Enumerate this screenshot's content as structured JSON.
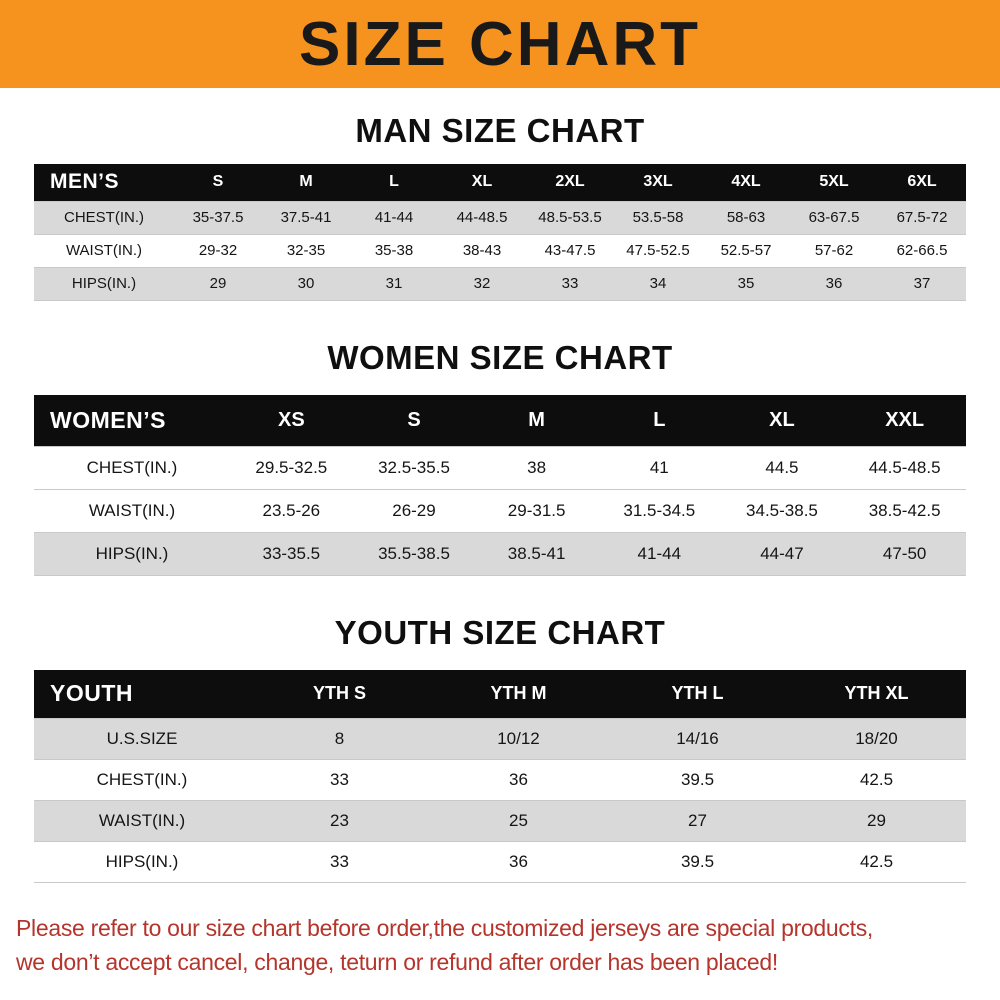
{
  "banner": {
    "title": "SIZE CHART"
  },
  "colors": {
    "banner_bg": "#f6921e",
    "header_row_bg": "#0d0d0d",
    "shaded_row_bg": "#d9d9d9",
    "footer_text": "#b5342b"
  },
  "chart_data": [
    {
      "type": "table",
      "title": "MAN SIZE CHART",
      "corner_label": "MEN’S",
      "columns": [
        "S",
        "M",
        "L",
        "XL",
        "2XL",
        "3XL",
        "4XL",
        "5XL",
        "6XL"
      ],
      "rows": [
        {
          "label": "CHEST(IN.)",
          "values": [
            "35-37.5",
            "37.5-41",
            "41-44",
            "44-48.5",
            "48.5-53.5",
            "53.5-58",
            "58-63",
            "63-67.5",
            "67.5-72"
          ]
        },
        {
          "label": "WAIST(IN.)",
          "values": [
            "29-32",
            "32-35",
            "35-38",
            "38-43",
            "43-47.5",
            "47.5-52.5",
            "52.5-57",
            "57-62",
            "62-66.5"
          ]
        },
        {
          "label": "HIPS(IN.)",
          "values": [
            "29",
            "30",
            "31",
            "32",
            "33",
            "34",
            "35",
            "36",
            "37"
          ]
        }
      ]
    },
    {
      "type": "table",
      "title": "WOMEN SIZE CHART",
      "corner_label": "WOMEN’S",
      "columns": [
        "XS",
        "S",
        "M",
        "L",
        "XL",
        "XXL"
      ],
      "rows": [
        {
          "label": "CHEST(IN.)",
          "values": [
            "29.5-32.5",
            "32.5-35.5",
            "38",
            "41",
            "44.5",
            "44.5-48.5"
          ]
        },
        {
          "label": "WAIST(IN.)",
          "values": [
            "23.5-26",
            "26-29",
            "29-31.5",
            "31.5-34.5",
            "34.5-38.5",
            "38.5-42.5"
          ]
        },
        {
          "label": "HIPS(IN.)",
          "values": [
            "33-35.5",
            "35.5-38.5",
            "38.5-41",
            "41-44",
            "44-47",
            "47-50"
          ]
        }
      ]
    },
    {
      "type": "table",
      "title": "YOUTH SIZE CHART",
      "corner_label": "YOUTH",
      "columns": [
        "YTH S",
        "YTH M",
        "YTH L",
        "YTH XL"
      ],
      "rows": [
        {
          "label": "U.S.SIZE",
          "values": [
            "8",
            "10/12",
            "14/16",
            "18/20"
          ]
        },
        {
          "label": "CHEST(IN.)",
          "values": [
            "33",
            "36",
            "39.5",
            "42.5"
          ]
        },
        {
          "label": "WAIST(IN.)",
          "values": [
            "23",
            "25",
            "27",
            "29"
          ]
        },
        {
          "label": "HIPS(IN.)",
          "values": [
            "33",
            "36",
            "39.5",
            "42.5"
          ]
        }
      ]
    }
  ],
  "footer": {
    "lines": [
      "Please refer to our size chart before order,the customized jerseys are special products,",
      "we don’t accept cancel, change, teturn or refund after order has been placed!"
    ]
  }
}
